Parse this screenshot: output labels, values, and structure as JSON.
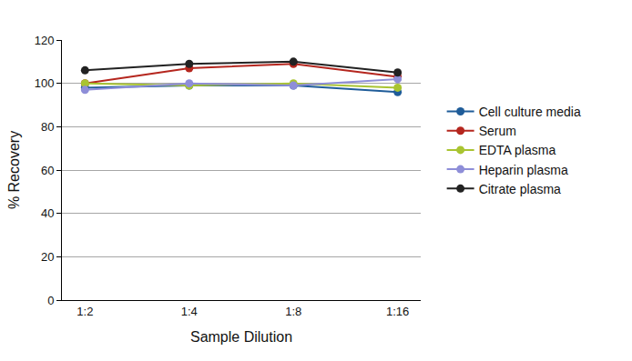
{
  "chart_data": {
    "type": "line",
    "x_label": "Sample Dilution",
    "y_label": "% Recovery",
    "categories": [
      "1:2",
      "1:4",
      "1:8",
      "1:16"
    ],
    "series": [
      {
        "name": "Cell culture media",
        "color": "#1f5c99",
        "values": [
          98,
          99,
          99,
          96
        ]
      },
      {
        "name": "Serum",
        "color": "#b5261e",
        "values": [
          100,
          107,
          109,
          103
        ]
      },
      {
        "name": "EDTA plasma",
        "color": "#a9c431",
        "values": [
          100,
          99,
          100,
          98
        ]
      },
      {
        "name": "Heparin plasma",
        "color": "#8e8ed8",
        "values": [
          97,
          100,
          99,
          102
        ]
      },
      {
        "name": "Citrate plasma",
        "color": "#222222",
        "values": [
          106,
          109,
          110,
          105
        ]
      }
    ],
    "ylim": [
      0,
      120
    ],
    "yticks": [
      0,
      20,
      40,
      60,
      80,
      100,
      120
    ],
    "grid": true,
    "legend": "right",
    "marker": "circle"
  }
}
